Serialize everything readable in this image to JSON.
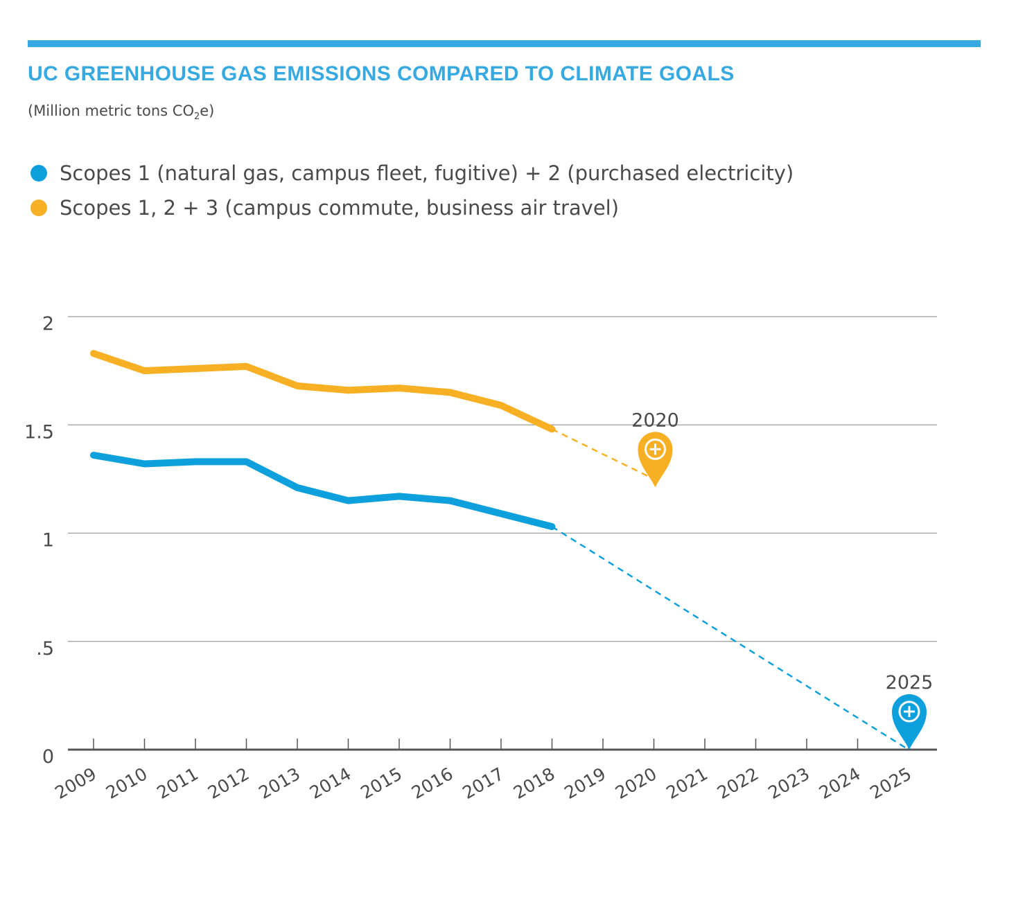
{
  "header": {
    "title": "UC GREENHOUSE GAS EMISSIONS COMPARED TO CLIMATE GOALS",
    "subtitle_prefix": "(Million metric tons CO",
    "subtitle_sub": "2",
    "subtitle_suffix": "e)"
  },
  "colors": {
    "accent": "#36a9e1",
    "scope12": "#0ea0dc",
    "scope123": "#f7b024",
    "grid": "#9a9a9a",
    "axis": "#555555",
    "text": "#4a4a4a"
  },
  "legend": [
    {
      "label": "Scopes 1 (natural gas, campus fleet, fugitive) + 2 (purchased electricity)",
      "color": "#0ea0dc"
    },
    {
      "label": "Scopes 1, 2 + 3 (campus commute, business air travel)",
      "color": "#f7b024"
    }
  ],
  "chart_data": {
    "type": "line",
    "x": [
      "2009",
      "2010",
      "2011",
      "2012",
      "2013",
      "2014",
      "2015",
      "2016",
      "2017",
      "2018",
      "2019",
      "2020",
      "2021",
      "2022",
      "2023",
      "2024",
      "2025"
    ],
    "ylim": [
      0,
      2
    ],
    "y_ticks": [
      0,
      0.5,
      1,
      1.5,
      2
    ],
    "y_tick_labels": [
      "0",
      ".5",
      "1",
      "1.5",
      "2"
    ],
    "grid": true,
    "series": [
      {
        "name": "Scopes 1 (natural gas, campus fleet, fugitive) + 2 (purchased electricity)",
        "color": "#0ea0dc",
        "values": [
          1.36,
          1.32,
          1.33,
          1.33,
          1.21,
          1.15,
          1.17,
          1.15,
          1.09,
          1.03,
          null,
          null,
          null,
          null,
          null,
          null,
          null
        ],
        "projection": {
          "from": "2018",
          "to": "2025",
          "to_value": 0
        }
      },
      {
        "name": "Scopes 1, 2 + 3 (campus commute, business air travel)",
        "color": "#f7b024",
        "values": [
          1.83,
          1.75,
          1.76,
          1.77,
          1.68,
          1.66,
          1.67,
          1.65,
          1.59,
          1.48,
          null,
          null,
          null,
          null,
          null,
          null,
          null
        ],
        "projection": {
          "from": "2018",
          "to": "2020",
          "to_value": 1.25
        }
      }
    ],
    "annotations": [
      {
        "text": "2020",
        "x": "2020",
        "y": 1.25,
        "color": "#f7b024",
        "icon": "map-pin-plus-icon"
      },
      {
        "text": "2025",
        "x": "2025",
        "y": 0,
        "color": "#0ea0dc",
        "icon": "map-pin-plus-icon"
      }
    ]
  }
}
